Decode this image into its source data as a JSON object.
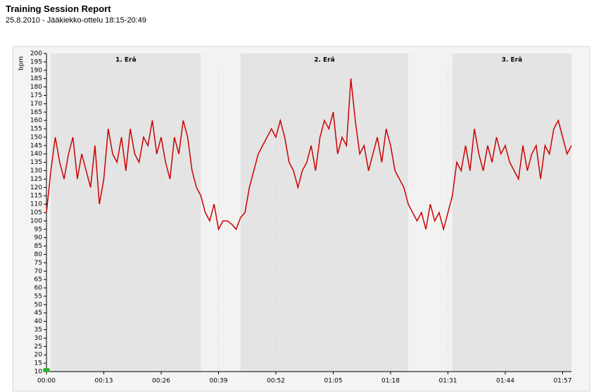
{
  "chart_data": {
    "type": "line",
    "title": "Training Session Report",
    "subtitle": "25.8.2010 - Jääkiekko-ottelu 18:15-20:49",
    "y_label": "bpm",
    "color": "#cc0000",
    "x": [
      0,
      1,
      2,
      3,
      4,
      5,
      6,
      7,
      8,
      9,
      10,
      11,
      12,
      13,
      14,
      15,
      16,
      17,
      18,
      19,
      20,
      21,
      22,
      23,
      24,
      25,
      26,
      27,
      28,
      29,
      30,
      31,
      32,
      33,
      34,
      35,
      36,
      37,
      38,
      39,
      40,
      41,
      42,
      43,
      44,
      45,
      46,
      47,
      48,
      49,
      50,
      51,
      52,
      53,
      54,
      55,
      56,
      57,
      58,
      59,
      60,
      61,
      62,
      63,
      64,
      65,
      66,
      67,
      68,
      69,
      70,
      71,
      72,
      73,
      74,
      75,
      76,
      77,
      78,
      79,
      80,
      81,
      82,
      83,
      84,
      85,
      86,
      87,
      88,
      89,
      90,
      91,
      92,
      93,
      94,
      95,
      96,
      97,
      98,
      99,
      100,
      101,
      102,
      103,
      104,
      105,
      106,
      107,
      108,
      109,
      110,
      111,
      112,
      113,
      114,
      115,
      116,
      117,
      118,
      119
    ],
    "values": [
      105,
      130,
      150,
      135,
      125,
      140,
      150,
      125,
      140,
      130,
      120,
      145,
      110,
      125,
      155,
      140,
      135,
      150,
      130,
      155,
      140,
      135,
      150,
      145,
      160,
      140,
      150,
      135,
      125,
      150,
      140,
      160,
      150,
      130,
      120,
      115,
      105,
      100,
      110,
      95,
      100,
      100,
      98,
      95,
      102,
      105,
      120,
      130,
      140,
      145,
      150,
      155,
      150,
      160,
      150,
      135,
      130,
      120,
      130,
      135,
      145,
      130,
      150,
      160,
      155,
      165,
      140,
      150,
      145,
      185,
      160,
      140,
      145,
      130,
      140,
      150,
      135,
      155,
      145,
      130,
      125,
      120,
      110,
      105,
      100,
      105,
      95,
      110,
      100,
      105,
      95,
      105,
      115,
      135,
      130,
      145,
      130,
      155,
      140,
      130,
      145,
      135,
      150,
      140,
      145,
      135,
      130,
      125,
      145,
      130,
      140,
      145,
      125,
      145,
      140,
      155,
      160,
      150,
      140,
      145
    ],
    "xlim": [
      0,
      119
    ],
    "ylim": [
      10,
      200
    ],
    "xticks": [
      {
        "value": 0,
        "label": "00:00"
      },
      {
        "value": 13,
        "label": "00:13"
      },
      {
        "value": 26,
        "label": "00:26"
      },
      {
        "value": 39,
        "label": "00:39"
      },
      {
        "value": 52,
        "label": "00:52"
      },
      {
        "value": 65,
        "label": "01:05"
      },
      {
        "value": 78,
        "label": "01:18"
      },
      {
        "value": 91,
        "label": "01:31"
      },
      {
        "value": 104,
        "label": "01:44"
      },
      {
        "value": 117,
        "label": "01:57"
      }
    ],
    "yticks": [
      10,
      15,
      20,
      25,
      30,
      35,
      40,
      45,
      50,
      55,
      60,
      65,
      70,
      75,
      80,
      85,
      90,
      95,
      100,
      105,
      110,
      115,
      120,
      125,
      130,
      135,
      140,
      145,
      150,
      155,
      160,
      165,
      170,
      175,
      180,
      185,
      190,
      195,
      200
    ],
    "grid": "x",
    "periods": [
      {
        "label": "1. Erä",
        "start": 1,
        "end": 35
      },
      {
        "label": "2. Erä",
        "start": 44,
        "end": 82
      },
      {
        "label": "3. Erä",
        "start": 92,
        "end": 119
      }
    ]
  }
}
